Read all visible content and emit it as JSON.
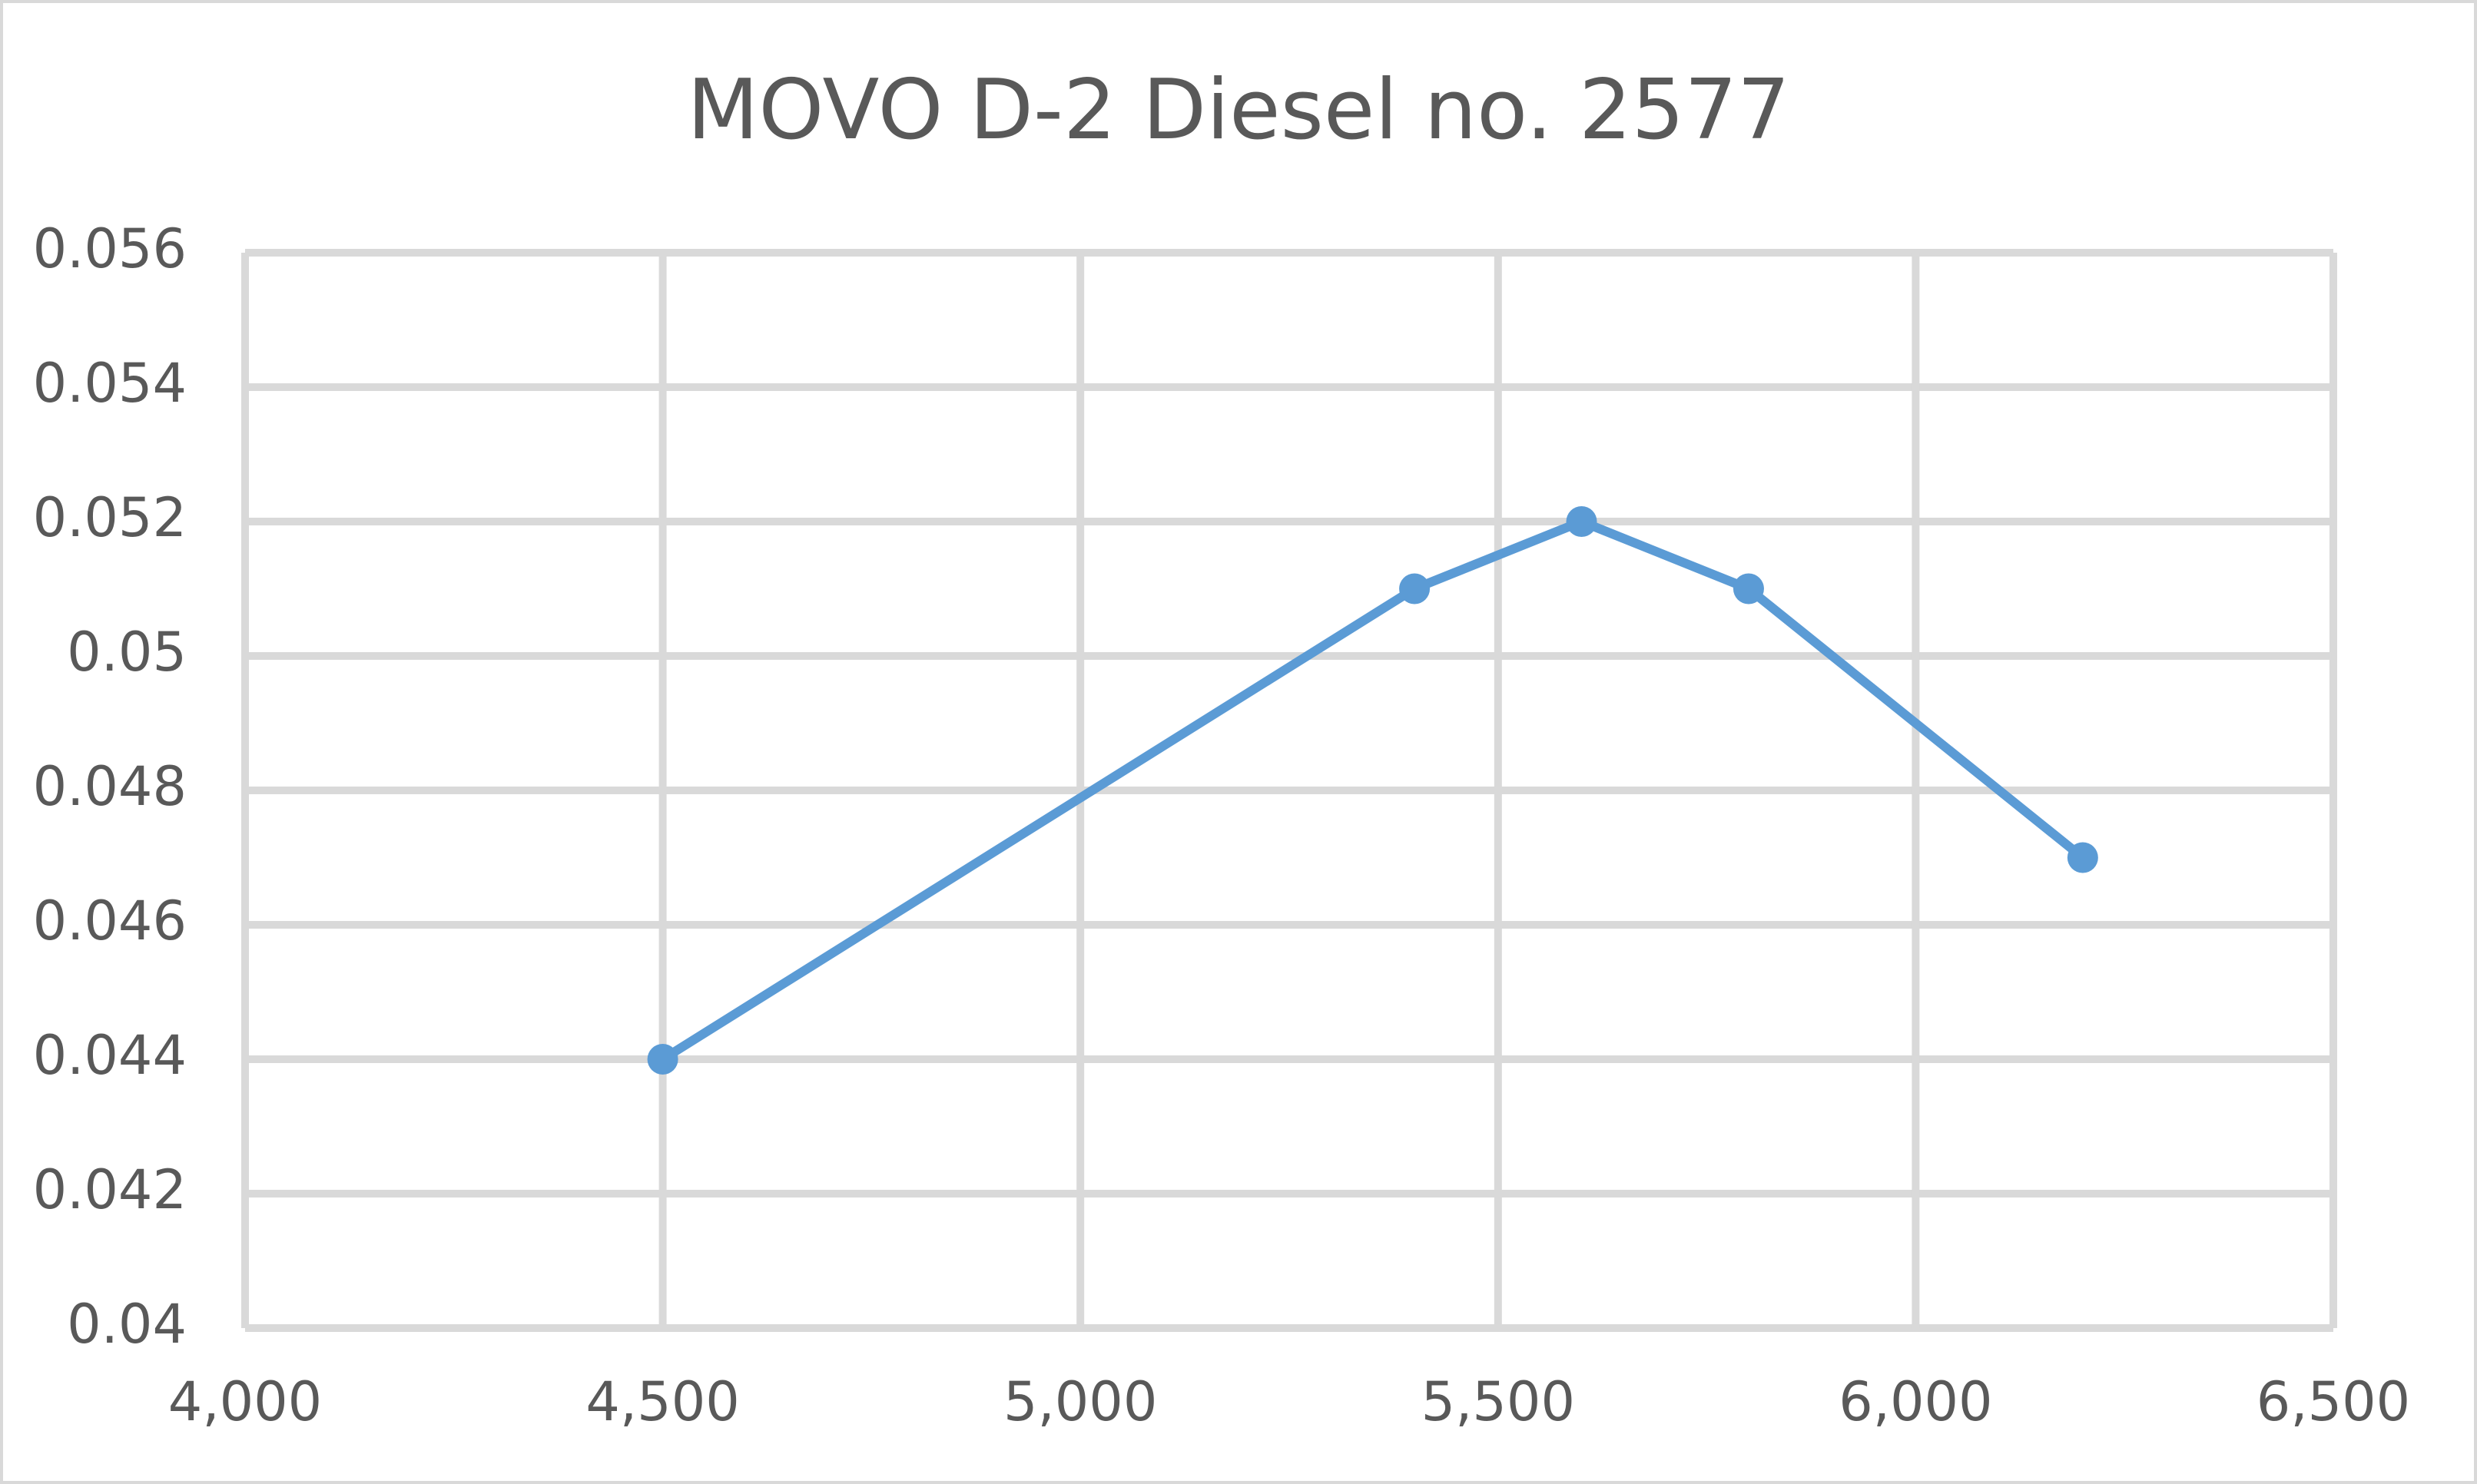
{
  "chart_data": {
    "type": "line",
    "title": "MOVO D-2 Diesel no. 2577",
    "x": [
      4500,
      5400,
      5600,
      5800,
      6200
    ],
    "series": [
      {
        "color": "#5b9bd5",
        "values": [
          0.044,
          0.051,
          0.052,
          0.051,
          0.047
        ]
      }
    ],
    "xlim": [
      4000,
      6500
    ],
    "xticks": [
      {
        "value": 4000,
        "label": "4,000"
      },
      {
        "value": 4500,
        "label": "4,500"
      },
      {
        "value": 5000,
        "label": "5,000"
      },
      {
        "value": 5500,
        "label": "5,500"
      },
      {
        "value": 6000,
        "label": "6,000"
      },
      {
        "value": 6500,
        "label": "6,500"
      }
    ],
    "ylim": [
      0.04,
      0.056
    ],
    "yticks": [
      0.04,
      0.042,
      0.044,
      0.046,
      0.048,
      0.05,
      0.052,
      0.054,
      0.056
    ],
    "grid": true
  }
}
